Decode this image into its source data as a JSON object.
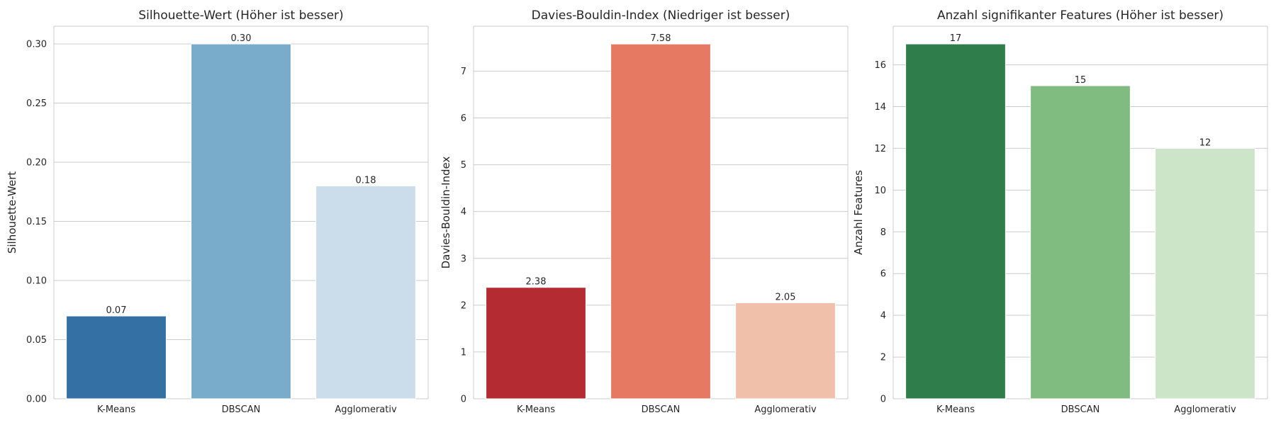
{
  "chart_data": [
    {
      "type": "bar",
      "title": "Silhouette-Wert (Höher ist besser)",
      "xlabel": "",
      "ylabel": "Silhouette-Wert",
      "categories": [
        "K-Means",
        "DBSCAN",
        "Agglomerativ"
      ],
      "values": [
        0.07,
        0.3,
        0.18
      ],
      "value_labels": [
        "0.07",
        "0.30",
        "0.18"
      ],
      "ylim": [
        0,
        0.315
      ],
      "yticks": [
        0.0,
        0.05,
        0.1,
        0.15,
        0.2,
        0.25,
        0.3
      ],
      "ytick_labels": [
        "0.00",
        "0.05",
        "0.10",
        "0.15",
        "0.20",
        "0.25",
        "0.30"
      ],
      "colors": [
        "#3470a3",
        "#79abcb",
        "#cbdcea"
      ],
      "grid": true
    },
    {
      "type": "bar",
      "title": "Davies-Bouldin-Index (Niedriger ist besser)",
      "xlabel": "",
      "ylabel": "Davies-Bouldin-Index",
      "categories": [
        "K-Means",
        "DBSCAN",
        "Agglomerativ"
      ],
      "values": [
        2.38,
        7.58,
        2.05
      ],
      "value_labels": [
        "2.38",
        "7.58",
        "2.05"
      ],
      "ylim": [
        0,
        7.96
      ],
      "yticks": [
        0,
        1,
        2,
        3,
        4,
        5,
        6,
        7
      ],
      "ytick_labels": [
        "0",
        "1",
        "2",
        "3",
        "4",
        "5",
        "6",
        "7"
      ],
      "colors": [
        "#b42b32",
        "#e67962",
        "#f0c0ab"
      ],
      "grid": true
    },
    {
      "type": "bar",
      "title": "Anzahl signifikanter Features (Höher ist besser)",
      "xlabel": "",
      "ylabel": "Anzahl Features",
      "categories": [
        "K-Means",
        "DBSCAN",
        "Agglomerativ"
      ],
      "values": [
        17,
        15,
        12
      ],
      "value_labels": [
        "17",
        "15",
        "12"
      ],
      "ylim": [
        0,
        17.85
      ],
      "yticks": [
        0,
        2,
        4,
        6,
        8,
        10,
        12,
        14,
        16
      ],
      "ytick_labels": [
        "0",
        "2",
        "4",
        "6",
        "8",
        "10",
        "12",
        "14",
        "16"
      ],
      "colors": [
        "#2f7d4a",
        "#80bc7f",
        "#cce5c9"
      ],
      "grid": true
    }
  ]
}
